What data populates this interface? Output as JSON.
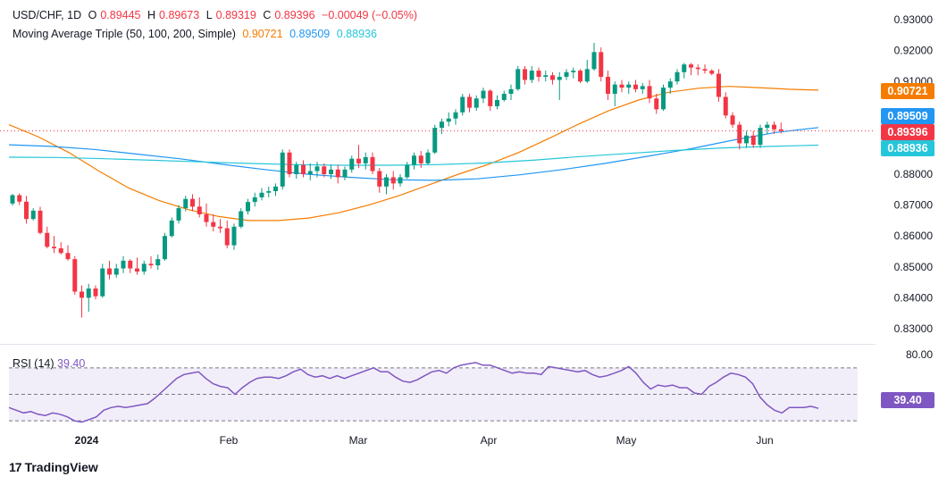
{
  "legend": {
    "symbol": "USD/CHF, 1D",
    "open_label": "O",
    "open": "0.89445",
    "high_label": "H",
    "high": "0.89673",
    "low_label": "L",
    "low": "0.89319",
    "close_label": "C",
    "close": "0.89396",
    "change": "−0.00049 (−0.05%)",
    "ma_title": "Moving Average Triple (50, 100, 200, Simple)",
    "ma50": "0.90721",
    "ma100": "0.89509",
    "ma200": "0.88936"
  },
  "rsi_legend": {
    "title": "RSI (14)",
    "value": "39.40"
  },
  "price_tags": {
    "ma50": "0.90721",
    "ma100": "0.89509",
    "close": "0.89396",
    "ma200": "0.88936",
    "rsi": "39.40"
  },
  "colors": {
    "up": "#089981",
    "down": "#f23645",
    "ma50": "#f57c00",
    "ma100": "#2196f3",
    "ma200": "#26c6da",
    "rsi": "#7e57c2"
  },
  "brand": "TradingView",
  "chart_data": [
    {
      "type": "candlestick",
      "title": "USD/CHF, 1D",
      "price_axis_ticks": [
        "0.93000",
        "0.92000",
        "0.91000",
        "0.90000",
        "0.89000",
        "0.88000",
        "0.87000",
        "0.86000",
        "0.85000",
        "0.84000",
        "0.83000"
      ],
      "ylim": [
        0.824,
        0.932
      ],
      "time_axis_labels": [
        "2024",
        "Feb",
        "Mar",
        "Apr",
        "May",
        "Jun"
      ],
      "ohlc": [
        [
          0.8705,
          0.8736,
          0.8698,
          0.8732
        ],
        [
          0.8732,
          0.8738,
          0.87,
          0.8711
        ],
        [
          0.8711,
          0.873,
          0.864,
          0.8655
        ],
        [
          0.8655,
          0.869,
          0.865,
          0.8682
        ],
        [
          0.8682,
          0.8695,
          0.8605,
          0.861
        ],
        [
          0.861,
          0.863,
          0.856,
          0.8565
        ],
        [
          0.8565,
          0.86,
          0.8545,
          0.856
        ],
        [
          0.856,
          0.858,
          0.854,
          0.8545
        ],
        [
          0.8545,
          0.857,
          0.852,
          0.8525
        ],
        [
          0.8525,
          0.8535,
          0.841,
          0.842
        ],
        [
          0.842,
          0.844,
          0.8336,
          0.84
        ],
        [
          0.84,
          0.8445,
          0.8355,
          0.843
        ],
        [
          0.843,
          0.844,
          0.8395,
          0.8405
        ],
        [
          0.8405,
          0.851,
          0.84,
          0.8495
        ],
        [
          0.8495,
          0.852,
          0.846,
          0.8475
        ],
        [
          0.8475,
          0.851,
          0.8465,
          0.8495
        ],
        [
          0.8495,
          0.8535,
          0.848,
          0.852
        ],
        [
          0.852,
          0.8525,
          0.848,
          0.8495
        ],
        [
          0.8495,
          0.853,
          0.8475,
          0.8485
        ],
        [
          0.8485,
          0.852,
          0.8475,
          0.851
        ],
        [
          0.851,
          0.8535,
          0.8495,
          0.8505
        ],
        [
          0.8505,
          0.854,
          0.849,
          0.8525
        ],
        [
          0.8525,
          0.861,
          0.852,
          0.86
        ],
        [
          0.86,
          0.866,
          0.8595,
          0.865
        ],
        [
          0.865,
          0.87,
          0.864,
          0.869
        ],
        [
          0.869,
          0.873,
          0.868,
          0.872
        ],
        [
          0.872,
          0.8735,
          0.868,
          0.8695
        ],
        [
          0.8695,
          0.8725,
          0.866,
          0.867
        ],
        [
          0.867,
          0.8705,
          0.863,
          0.8645
        ],
        [
          0.8645,
          0.867,
          0.8615,
          0.863
        ],
        [
          0.863,
          0.8655,
          0.861,
          0.8625
        ],
        [
          0.8625,
          0.865,
          0.856,
          0.857
        ],
        [
          0.857,
          0.864,
          0.8555,
          0.863
        ],
        [
          0.863,
          0.869,
          0.8625,
          0.868
        ],
        [
          0.868,
          0.872,
          0.867,
          0.871
        ],
        [
          0.871,
          0.874,
          0.8695,
          0.8725
        ],
        [
          0.8725,
          0.8755,
          0.8715,
          0.874
        ],
        [
          0.874,
          0.876,
          0.8725,
          0.8745
        ],
        [
          0.8745,
          0.877,
          0.873,
          0.876
        ],
        [
          0.876,
          0.888,
          0.875,
          0.887
        ],
        [
          0.887,
          0.888,
          0.879,
          0.88
        ],
        [
          0.88,
          0.884,
          0.8785,
          0.883
        ],
        [
          0.883,
          0.8845,
          0.879,
          0.88
        ],
        [
          0.88,
          0.8835,
          0.878,
          0.881
        ],
        [
          0.881,
          0.884,
          0.879,
          0.8825
        ],
        [
          0.8825,
          0.8835,
          0.879,
          0.88
        ],
        [
          0.88,
          0.883,
          0.8785,
          0.8815
        ],
        [
          0.8815,
          0.883,
          0.877,
          0.879
        ],
        [
          0.879,
          0.8825,
          0.878,
          0.8815
        ],
        [
          0.8815,
          0.886,
          0.8805,
          0.885
        ],
        [
          0.885,
          0.8895,
          0.882,
          0.8835
        ],
        [
          0.8835,
          0.887,
          0.8815,
          0.8855
        ],
        [
          0.8855,
          0.887,
          0.88,
          0.881
        ],
        [
          0.881,
          0.882,
          0.874,
          0.876
        ],
        [
          0.876,
          0.88,
          0.8735,
          0.879
        ],
        [
          0.879,
          0.881,
          0.875,
          0.877
        ],
        [
          0.877,
          0.88,
          0.876,
          0.879
        ],
        [
          0.879,
          0.884,
          0.8785,
          0.883
        ],
        [
          0.883,
          0.887,
          0.8815,
          0.886
        ],
        [
          0.886,
          0.8875,
          0.882,
          0.8835
        ],
        [
          0.8835,
          0.888,
          0.883,
          0.887
        ],
        [
          0.887,
          0.896,
          0.8865,
          0.895
        ],
        [
          0.895,
          0.898,
          0.893,
          0.897
        ],
        [
          0.897,
          0.9,
          0.8955,
          0.898
        ],
        [
          0.898,
          0.901,
          0.896,
          0.9
        ],
        [
          0.9,
          0.906,
          0.899,
          0.905
        ],
        [
          0.905,
          0.906,
          0.9,
          0.9015
        ],
        [
          0.9015,
          0.9055,
          0.9005,
          0.9045
        ],
        [
          0.9045,
          0.908,
          0.903,
          0.907
        ],
        [
          0.907,
          0.9075,
          0.9005,
          0.902
        ],
        [
          0.902,
          0.9055,
          0.901,
          0.904
        ],
        [
          0.904,
          0.907,
          0.9035,
          0.906
        ],
        [
          0.906,
          0.909,
          0.904,
          0.9075
        ],
        [
          0.9075,
          0.915,
          0.907,
          0.914
        ],
        [
          0.914,
          0.915,
          0.909,
          0.9105
        ],
        [
          0.9105,
          0.915,
          0.9095,
          0.9135
        ],
        [
          0.9135,
          0.9145,
          0.91,
          0.9115
        ],
        [
          0.9115,
          0.9135,
          0.91,
          0.912
        ],
        [
          0.912,
          0.913,
          0.909,
          0.9105
        ],
        [
          0.9105,
          0.913,
          0.904,
          0.9115
        ],
        [
          0.9115,
          0.914,
          0.9105,
          0.913
        ],
        [
          0.913,
          0.9145,
          0.911,
          0.9135
        ],
        [
          0.9135,
          0.914,
          0.9095,
          0.91
        ],
        [
          0.91,
          0.917,
          0.9095,
          0.914
        ],
        [
          0.914,
          0.9225,
          0.9135,
          0.9195
        ],
        [
          0.9195,
          0.921,
          0.91,
          0.9115
        ],
        [
          0.9115,
          0.9135,
          0.904,
          0.906
        ],
        [
          0.906,
          0.91,
          0.902,
          0.909
        ],
        [
          0.909,
          0.9105,
          0.9065,
          0.908
        ],
        [
          0.908,
          0.91,
          0.906,
          0.909
        ],
        [
          0.909,
          0.9105,
          0.9065,
          0.9075
        ],
        [
          0.9075,
          0.9095,
          0.906,
          0.9085
        ],
        [
          0.9085,
          0.9105,
          0.903,
          0.9045
        ],
        [
          0.9045,
          0.906,
          0.8995,
          0.901
        ],
        [
          0.901,
          0.909,
          0.9005,
          0.908
        ],
        [
          0.908,
          0.911,
          0.906,
          0.91
        ],
        [
          0.91,
          0.914,
          0.909,
          0.913
        ],
        [
          0.913,
          0.916,
          0.911,
          0.9155
        ],
        [
          0.9155,
          0.916,
          0.912,
          0.9145
        ],
        [
          0.9145,
          0.9155,
          0.912,
          0.914
        ],
        [
          0.914,
          0.9155,
          0.9125,
          0.9135
        ],
        [
          0.9135,
          0.914,
          0.912,
          0.9125
        ],
        [
          0.9125,
          0.914,
          0.9035,
          0.905
        ],
        [
          0.905,
          0.9065,
          0.898,
          0.899
        ],
        [
          0.899,
          0.9,
          0.895,
          0.896
        ],
        [
          0.896,
          0.897,
          0.888,
          0.89
        ],
        [
          0.89,
          0.894,
          0.8885,
          0.8925
        ],
        [
          0.8925,
          0.894,
          0.8885,
          0.8895
        ],
        [
          0.8895,
          0.896,
          0.8885,
          0.895
        ],
        [
          0.895,
          0.897,
          0.893,
          0.896
        ],
        [
          0.896,
          0.897,
          0.893,
          0.8945
        ],
        [
          0.8945,
          0.8967,
          0.8932,
          0.894
        ]
      ],
      "moving_averages": [
        {
          "name": "MA 50",
          "period": 50,
          "last": 0.90721,
          "points": [
            0.896,
            0.892,
            0.887,
            0.881,
            0.8755,
            0.8715,
            0.8685,
            0.8663,
            0.865,
            0.865,
            0.8658,
            0.8675,
            0.87,
            0.873,
            0.8765,
            0.88,
            0.8832,
            0.887,
            0.8915,
            0.8962,
            0.9005,
            0.904,
            0.9065,
            0.9078,
            0.9084,
            0.908,
            0.9075,
            0.9072
          ]
        },
        {
          "name": "MA 100",
          "period": 100,
          "last": 0.89509,
          "points": [
            0.8895,
            0.889,
            0.888,
            0.8865,
            0.885,
            0.8832,
            0.8815,
            0.88,
            0.879,
            0.8782,
            0.878,
            0.8785,
            0.8798,
            0.8815,
            0.8835,
            0.8858,
            0.8882,
            0.891,
            0.8935,
            0.8951
          ]
        },
        {
          "name": "MA 200",
          "period": 200,
          "last": 0.88936,
          "points": [
            0.8855,
            0.8854,
            0.885,
            0.8845,
            0.884,
            0.8835,
            0.8831,
            0.8829,
            0.8829,
            0.8831,
            0.8836,
            0.8845,
            0.8857,
            0.8867,
            0.8877,
            0.8885,
            0.889,
            0.8894
          ]
        }
      ]
    },
    {
      "type": "line",
      "title": "RSI (14)",
      "ylim": [
        20,
        80
      ],
      "levels": [
        30,
        50,
        70
      ],
      "axis_label": "80.00",
      "last": 39.4,
      "values": [
        40,
        38,
        36,
        37,
        35,
        34,
        36,
        35,
        33,
        30,
        29,
        31,
        33,
        38,
        40,
        41,
        40,
        41,
        42,
        43,
        47,
        52,
        57,
        62,
        65,
        66,
        67,
        62,
        58,
        56,
        55,
        50,
        55,
        59,
        62,
        63,
        63,
        62,
        64,
        67,
        69,
        65,
        63,
        64,
        62,
        64,
        62,
        64,
        66,
        68,
        70,
        67,
        67,
        63,
        60,
        59,
        61,
        64,
        67,
        68,
        66,
        70,
        72,
        73,
        74,
        72,
        72,
        70,
        68,
        66,
        67,
        66,
        66,
        65,
        71,
        70,
        69,
        68,
        67,
        68,
        65,
        63,
        64,
        66,
        68,
        71,
        66,
        59,
        54,
        57,
        56,
        57,
        55,
        55,
        51,
        50,
        56,
        59,
        63,
        66,
        65,
        63,
        58,
        48,
        42,
        38,
        36,
        40,
        40,
        40,
        41,
        39.4
      ]
    }
  ]
}
